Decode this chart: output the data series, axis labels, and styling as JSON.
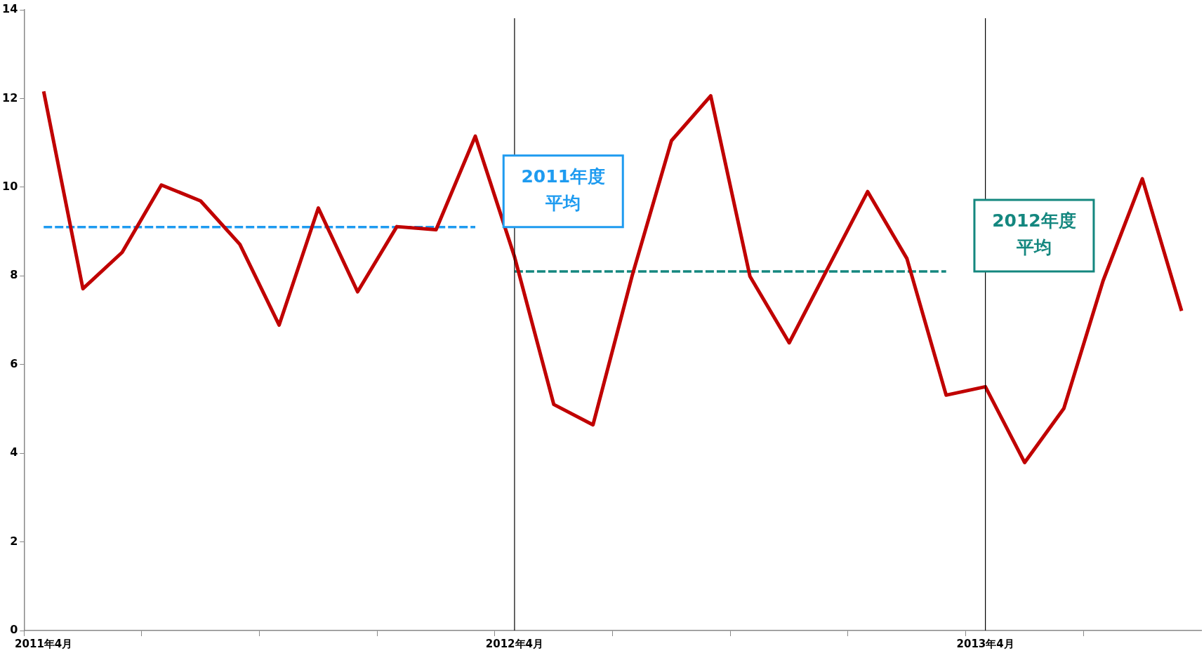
{
  "chart_data": {
    "type": "line",
    "categories": [
      "2011年4月",
      null,
      null,
      null,
      null,
      null,
      null,
      null,
      null,
      null,
      null,
      null,
      "2012年4月",
      null,
      null,
      null,
      null,
      null,
      null,
      null,
      null,
      null,
      null,
      null,
      "2013年4月",
      null,
      null,
      null,
      null,
      null
    ],
    "ylim": [
      0,
      14
    ],
    "yticks": [
      0,
      2,
      4,
      6,
      8,
      10,
      12,
      14
    ],
    "grid": false,
    "legend": false,
    "marker": "none",
    "series": [
      {
        "color": "#c00000",
        "line_style": "solid",
        "values": [
          12.16,
          7.71,
          8.53,
          10.05,
          9.69,
          8.71,
          6.89,
          9.53,
          7.64,
          9.11,
          9.04,
          11.15,
          8.43,
          5.1,
          4.64,
          8.01,
          11.05,
          12.06,
          7.99,
          6.49,
          8.2,
          9.9,
          8.39,
          5.31,
          5.5,
          3.79,
          5.01,
          7.89,
          10.19,
          7.21
        ]
      },
      {
        "name": "2011年度平均",
        "color": "#1e9bf0",
        "line_style": "dashed",
        "values": [
          9.1,
          9.1,
          9.1,
          9.1,
          9.1,
          9.1,
          9.1,
          9.1,
          9.1,
          9.1,
          9.1,
          9.1,
          null,
          null,
          null,
          null,
          null,
          null,
          null,
          null,
          null,
          null,
          null,
          null,
          null,
          null,
          null,
          null,
          null,
          null
        ]
      },
      {
        "name": "2012年度平均",
        "color": "#14877f",
        "line_style": "dashed",
        "values": [
          null,
          null,
          null,
          null,
          null,
          null,
          null,
          null,
          null,
          null,
          null,
          null,
          8.1,
          8.1,
          8.1,
          8.1,
          8.1,
          8.1,
          8.1,
          8.1,
          8.1,
          8.1,
          8.1,
          8.1,
          null,
          null,
          null,
          null,
          null,
          null
        ]
      }
    ],
    "ref_lines": [
      {
        "axis": "x",
        "value": "2012年4月",
        "color": "#000000"
      },
      {
        "axis": "x",
        "value": "2013年4月",
        "color": "#000000"
      }
    ]
  }
}
